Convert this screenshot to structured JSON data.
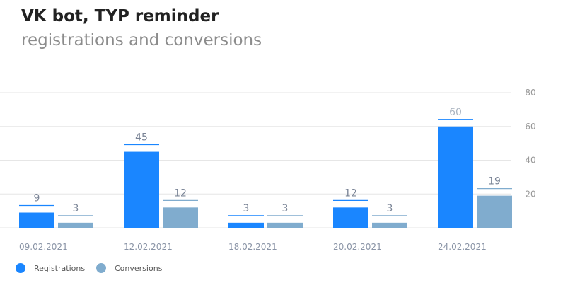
{
  "title": "VK bot, TYP reminder",
  "subtitle": "registrations and conversions",
  "chart_data": {
    "type": "bar",
    "title": "VK bot, TYP reminder",
    "subtitle": "registrations and conversions",
    "categories": [
      "09.02.2021",
      "12.02.2021",
      "18.02.2021",
      "20.02.2021",
      "24.02.2021"
    ],
    "series": [
      {
        "name": "Registrations",
        "color": "#1a86ff",
        "values": [
          9,
          45,
          3,
          12,
          60
        ]
      },
      {
        "name": "Conversions",
        "color": "#80acce",
        "values": [
          3,
          12,
          3,
          3,
          19
        ]
      }
    ],
    "yticks": [
      "20",
      "40",
      "60",
      "80"
    ],
    "ylim": [
      0,
      80
    ],
    "grid": true,
    "legend_position": "bottom-left",
    "xlabel": "",
    "ylabel": ""
  }
}
